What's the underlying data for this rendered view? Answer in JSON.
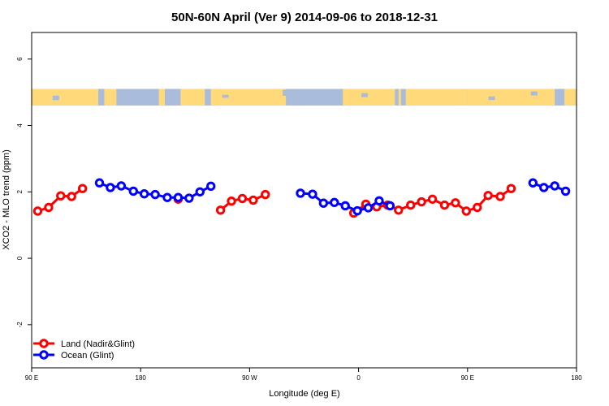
{
  "chart_data": {
    "type": "line",
    "title": "50N-60N April (Ver 9)   2014-09-06 to 2018-12-31",
    "xlabel": "Longitude (deg E)",
    "ylabel": "XCO2 - MLO trend (ppm)",
    "xlim": [
      90,
      540
    ],
    "ylim": [
      -3.3,
      6.8
    ],
    "x_ticks": [
      {
        "value": 90,
        "label": "90 E"
      },
      {
        "value": 180,
        "label": "180"
      },
      {
        "value": 270,
        "label": "90 W"
      },
      {
        "value": 360,
        "label": "0"
      },
      {
        "value": 450,
        "label": "90 E"
      },
      {
        "value": 540,
        "label": "180"
      }
    ],
    "y_ticks": [
      {
        "value": -2,
        "label": "-2"
      },
      {
        "value": 0,
        "label": "0"
      },
      {
        "value": 2,
        "label": "2"
      },
      {
        "value": 4,
        "label": "4"
      },
      {
        "value": 6,
        "label": "6"
      }
    ],
    "map_band": {
      "y_from": 4.6,
      "y_to": 5.1,
      "land_color": "#FFD97A",
      "ocean_color": "#A9BCDC"
    },
    "legend_position": "bottom-left",
    "series": [
      {
        "name": "Land (Nadir&Glint)",
        "color": "#FF0000",
        "segments": [
          [
            [
              95,
              1.42
            ],
            [
              104,
              1.53
            ],
            [
              114,
              1.88
            ],
            [
              123,
              1.86
            ],
            [
              132,
              2.1
            ]
          ],
          [
            [
              211,
              1.78
            ]
          ],
          [
            [
              246,
              1.45
            ],
            [
              255,
              1.72
            ],
            [
              264,
              1.8
            ],
            [
              273,
              1.75
            ],
            [
              283,
              1.92
            ]
          ],
          [
            [
              356,
              1.36
            ],
            [
              366,
              1.63
            ],
            [
              375,
              1.55
            ],
            [
              384,
              1.6
            ],
            [
              393,
              1.45
            ],
            [
              403,
              1.6
            ],
            [
              412,
              1.7
            ],
            [
              421,
              1.78
            ],
            [
              431,
              1.6
            ],
            [
              440,
              1.67
            ],
            [
              449,
              1.42
            ],
            [
              458,
              1.53
            ],
            [
              467,
              1.89
            ],
            [
              477,
              1.86
            ],
            [
              486,
              2.1
            ]
          ]
        ]
      },
      {
        "name": "Ocean (Glint)",
        "color": "#0000FF",
        "segments": [
          [
            [
              146,
              2.27
            ],
            [
              155,
              2.13
            ],
            [
              164,
              2.18
            ],
            [
              174,
              2.02
            ],
            [
              183,
              1.94
            ],
            [
              192,
              1.92
            ],
            [
              202,
              1.83
            ],
            [
              211,
              1.83
            ],
            [
              220,
              1.81
            ],
            [
              229,
              2.0
            ],
            [
              238,
              2.17
            ]
          ],
          [
            [
              312,
              1.96
            ],
            [
              322,
              1.93
            ],
            [
              331,
              1.66
            ],
            [
              340,
              1.68
            ],
            [
              349,
              1.58
            ],
            [
              359,
              1.43
            ],
            [
              368,
              1.52
            ],
            [
              377,
              1.73
            ],
            [
              386,
              1.58
            ]
          ],
          [
            [
              504,
              2.27
            ],
            [
              513,
              2.13
            ],
            [
              522,
              2.18
            ],
            [
              531,
              2.02
            ]
          ]
        ]
      }
    ]
  }
}
